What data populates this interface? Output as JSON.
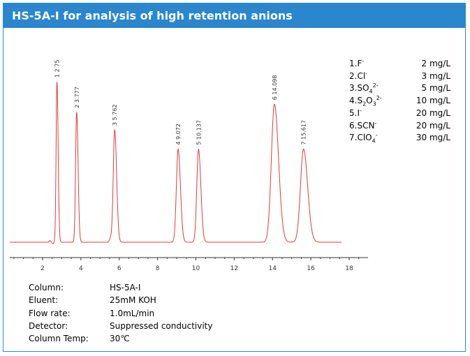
{
  "header": {
    "title": "HS-5A-I for analysis of high retention anions"
  },
  "chart_data": {
    "type": "line",
    "title": "",
    "xlabel": "",
    "ylabel": "",
    "xlim": [
      0,
      19
    ],
    "x_ticks": [
      "2",
      "4",
      "6",
      "8",
      "10",
      "12",
      "14",
      "16",
      "18"
    ],
    "line_color": "#e23a3a",
    "peaks": [
      {
        "id": "1",
        "rt": 2.75,
        "label": "1  2.75",
        "height": 1.0,
        "width": 0.045
      },
      {
        "id": "2",
        "rt": 3.777,
        "label": "2  3.777",
        "height": 0.81,
        "width": 0.055
      },
      {
        "id": "3",
        "rt": 5.762,
        "label": "3  5.762",
        "height": 0.7,
        "width": 0.075
      },
      {
        "id": "4",
        "rt": 9.072,
        "label": "4  9.072",
        "height": 0.58,
        "width": 0.09
      },
      {
        "id": "5",
        "rt": 10.137,
        "label": "5  10.137",
        "height": 0.58,
        "width": 0.09
      },
      {
        "id": "6",
        "rt": 14.098,
        "label": "6  14.098",
        "height": 0.86,
        "width": 0.16
      },
      {
        "id": "7",
        "rt": 15.617,
        "label": "7  15.617",
        "height": 0.58,
        "width": 0.16
      }
    ]
  },
  "legend": [
    {
      "num": "1.F",
      "sup": "-",
      "sub": "",
      "tail": "",
      "conc": "2 mg/L"
    },
    {
      "num": "2.Cl",
      "sup": "-",
      "sub": "",
      "tail": "",
      "conc": "3 mg/L"
    },
    {
      "num": "3.SO",
      "sub": "4",
      "sup": "2-",
      "tail": "",
      "conc": "5 mg/L"
    },
    {
      "num": "4.S",
      "sub": "2",
      "mid": "O",
      "sub2": "3",
      "sup": "2-",
      "conc": "10 mg/L"
    },
    {
      "num": "5.I",
      "sup": "-",
      "sub": "",
      "tail": "",
      "conc": "20 mg/L"
    },
    {
      "num": "6.SCN",
      "sup": "-",
      "sub": "",
      "tail": "",
      "conc": "20 mg/L"
    },
    {
      "num": "7.ClO",
      "sub": "4",
      "sup": "-",
      "tail": "",
      "conc": "30 mg/L"
    }
  ],
  "conditions": [
    {
      "label": "Column:",
      "value": "HS-5A-I"
    },
    {
      "label": "Eluent:",
      "value": "25mM KOH"
    },
    {
      "label": "Flow rate:",
      "value": "1.0mL/min"
    },
    {
      "label": "Detector:",
      "value": "Suppressed conductivity"
    },
    {
      "label": "Column Temp:",
      "value": "30℃"
    }
  ]
}
